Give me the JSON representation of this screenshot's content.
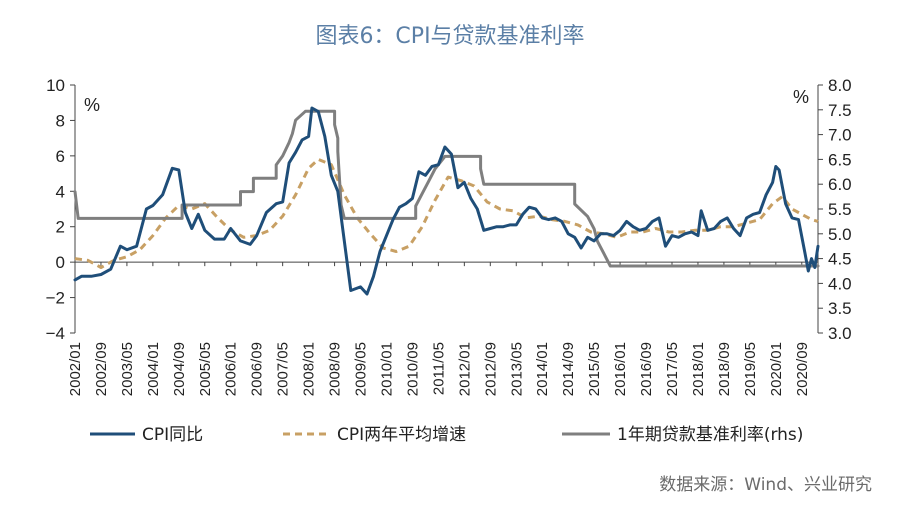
{
  "title": "图表6：CPI与贷款基准利率",
  "source": "数据来源：Wind、兴业研究",
  "chart_data": {
    "type": "line",
    "title": "图表6：CPI与贷款基准利率",
    "y_left": {
      "unit": "%",
      "range": [
        -4,
        10
      ],
      "ticks": [
        "-4",
        "-2",
        "0",
        "2",
        "4",
        "6",
        "8",
        "10"
      ]
    },
    "y_right": {
      "unit": "%",
      "range": [
        3.0,
        8.0
      ],
      "ticks": [
        "3.0",
        "3.5",
        "4.0",
        "4.5",
        "5.0",
        "5.5",
        "6.0",
        "6.5",
        "7.0",
        "7.5",
        "8.0"
      ]
    },
    "x_ticks": [
      "2002/01",
      "2002/09",
      "2003/05",
      "2004/01",
      "2004/09",
      "2005/05",
      "2006/01",
      "2006/09",
      "2007/05",
      "2008/01",
      "2008/09",
      "2009/05",
      "2010/01",
      "2010/09",
      "2011/05",
      "2012/01",
      "2012/09",
      "2013/05",
      "2014/01",
      "2014/09",
      "2015/05",
      "2016/01",
      "2016/09",
      "2017/05",
      "2018/01",
      "2018/09",
      "2019/05",
      "2020/01",
      "2020/09"
    ],
    "x_range": [
      "2002/01",
      "2021/02"
    ],
    "legend_position": "bottom",
    "grid": false,
    "series": [
      {
        "name": "CPI同比",
        "axis": "left",
        "color": "#1f4e79",
        "style": "solid",
        "points": [
          [
            "2002/01",
            -1.0
          ],
          [
            "2002/03",
            -0.8
          ],
          [
            "2002/06",
            -0.8
          ],
          [
            "2002/09",
            -0.7
          ],
          [
            "2002/12",
            -0.4
          ],
          [
            "2003/03",
            0.9
          ],
          [
            "2003/05",
            0.7
          ],
          [
            "2003/08",
            0.9
          ],
          [
            "2003/11",
            3.0
          ],
          [
            "2004/01",
            3.2
          ],
          [
            "2004/04",
            3.8
          ],
          [
            "2004/07",
            5.3
          ],
          [
            "2004/09",
            5.2
          ],
          [
            "2004/11",
            2.8
          ],
          [
            "2005/01",
            1.9
          ],
          [
            "2005/03",
            2.7
          ],
          [
            "2005/05",
            1.8
          ],
          [
            "2005/08",
            1.3
          ],
          [
            "2005/11",
            1.3
          ],
          [
            "2006/01",
            1.9
          ],
          [
            "2006/04",
            1.2
          ],
          [
            "2006/07",
            1.0
          ],
          [
            "2006/09",
            1.5
          ],
          [
            "2006/12",
            2.8
          ],
          [
            "2007/03",
            3.3
          ],
          [
            "2007/05",
            3.4
          ],
          [
            "2007/07",
            5.6
          ],
          [
            "2007/09",
            6.2
          ],
          [
            "2007/11",
            6.9
          ],
          [
            "2008/01",
            7.1
          ],
          [
            "2008/02",
            8.7
          ],
          [
            "2008/04",
            8.5
          ],
          [
            "2008/06",
            7.1
          ],
          [
            "2008/08",
            4.9
          ],
          [
            "2008/10",
            4.0
          ],
          [
            "2008/12",
            1.2
          ],
          [
            "2009/02",
            -1.6
          ],
          [
            "2009/05",
            -1.4
          ],
          [
            "2009/07",
            -1.8
          ],
          [
            "2009/09",
            -0.8
          ],
          [
            "2009/11",
            0.6
          ],
          [
            "2010/01",
            1.5
          ],
          [
            "2010/03",
            2.4
          ],
          [
            "2010/05",
            3.1
          ],
          [
            "2010/07",
            3.3
          ],
          [
            "2010/09",
            3.6
          ],
          [
            "2010/11",
            5.1
          ],
          [
            "2011/01",
            4.9
          ],
          [
            "2011/03",
            5.4
          ],
          [
            "2011/05",
            5.5
          ],
          [
            "2011/07",
            6.5
          ],
          [
            "2011/09",
            6.1
          ],
          [
            "2011/11",
            4.2
          ],
          [
            "2012/01",
            4.5
          ],
          [
            "2012/03",
            3.6
          ],
          [
            "2012/05",
            3.0
          ],
          [
            "2012/07",
            1.8
          ],
          [
            "2012/09",
            1.9
          ],
          [
            "2012/11",
            2.0
          ],
          [
            "2013/01",
            2.0
          ],
          [
            "2013/03",
            2.1
          ],
          [
            "2013/05",
            2.1
          ],
          [
            "2013/07",
            2.7
          ],
          [
            "2013/09",
            3.1
          ],
          [
            "2013/11",
            3.0
          ],
          [
            "2014/01",
            2.5
          ],
          [
            "2014/03",
            2.4
          ],
          [
            "2014/05",
            2.5
          ],
          [
            "2014/07",
            2.3
          ],
          [
            "2014/09",
            1.6
          ],
          [
            "2014/11",
            1.4
          ],
          [
            "2015/01",
            0.8
          ],
          [
            "2015/03",
            1.4
          ],
          [
            "2015/05",
            1.2
          ],
          [
            "2015/07",
            1.6
          ],
          [
            "2015/09",
            1.6
          ],
          [
            "2015/11",
            1.5
          ],
          [
            "2016/01",
            1.8
          ],
          [
            "2016/03",
            2.3
          ],
          [
            "2016/05",
            2.0
          ],
          [
            "2016/07",
            1.8
          ],
          [
            "2016/09",
            1.9
          ],
          [
            "2016/11",
            2.3
          ],
          [
            "2017/01",
            2.5
          ],
          [
            "2017/03",
            0.9
          ],
          [
            "2017/05",
            1.5
          ],
          [
            "2017/07",
            1.4
          ],
          [
            "2017/09",
            1.6
          ],
          [
            "2017/11",
            1.7
          ],
          [
            "2018/01",
            1.5
          ],
          [
            "2018/02",
            2.9
          ],
          [
            "2018/04",
            1.8
          ],
          [
            "2018/06",
            1.9
          ],
          [
            "2018/08",
            2.3
          ],
          [
            "2018/10",
            2.5
          ],
          [
            "2018/12",
            1.9
          ],
          [
            "2019/02",
            1.5
          ],
          [
            "2019/04",
            2.5
          ],
          [
            "2019/06",
            2.7
          ],
          [
            "2019/08",
            2.8
          ],
          [
            "2019/10",
            3.8
          ],
          [
            "2019/12",
            4.5
          ],
          [
            "2020/01",
            5.4
          ],
          [
            "2020/02",
            5.2
          ],
          [
            "2020/04",
            3.3
          ],
          [
            "2020/06",
            2.5
          ],
          [
            "2020/08",
            2.4
          ],
          [
            "2020/10",
            0.5
          ],
          [
            "2020/11",
            -0.5
          ],
          [
            "2020/12",
            0.2
          ],
          [
            "2021/01",
            -0.3
          ],
          [
            "2021/02",
            0.9
          ]
        ]
      },
      {
        "name": "CPI两年平均增速",
        "axis": "left",
        "color": "#c8a064",
        "style": "dashed",
        "points": [
          [
            "2002/01",
            0.2
          ],
          [
            "2002/05",
            0.1
          ],
          [
            "2002/09",
            -0.3
          ],
          [
            "2003/01",
            0.1
          ],
          [
            "2003/05",
            0.3
          ],
          [
            "2003/09",
            0.7
          ],
          [
            "2004/01",
            1.5
          ],
          [
            "2004/05",
            2.5
          ],
          [
            "2004/09",
            3.2
          ],
          [
            "2005/01",
            3.0
          ],
          [
            "2005/05",
            3.3
          ],
          [
            "2005/09",
            2.5
          ],
          [
            "2006/01",
            1.8
          ],
          [
            "2006/05",
            1.4
          ],
          [
            "2006/09",
            1.5
          ],
          [
            "2007/01",
            1.8
          ],
          [
            "2007/05",
            2.6
          ],
          [
            "2007/09",
            3.8
          ],
          [
            "2008/01",
            5.3
          ],
          [
            "2008/04",
            5.8
          ],
          [
            "2008/08",
            5.5
          ],
          [
            "2008/12",
            3.8
          ],
          [
            "2009/04",
            2.5
          ],
          [
            "2009/08",
            1.6
          ],
          [
            "2009/12",
            0.8
          ],
          [
            "2010/04",
            0.6
          ],
          [
            "2010/08",
            0.9
          ],
          [
            "2010/12",
            2.0
          ],
          [
            "2011/04",
            3.5
          ],
          [
            "2011/08",
            4.8
          ],
          [
            "2011/12",
            4.6
          ],
          [
            "2012/04",
            4.3
          ],
          [
            "2012/08",
            3.4
          ],
          [
            "2012/12",
            3.0
          ],
          [
            "2013/04",
            2.9
          ],
          [
            "2013/08",
            2.5
          ],
          [
            "2013/12",
            2.6
          ],
          [
            "2014/04",
            2.4
          ],
          [
            "2014/08",
            2.3
          ],
          [
            "2014/12",
            2.1
          ],
          [
            "2015/04",
            1.7
          ],
          [
            "2015/08",
            1.6
          ],
          [
            "2015/12",
            1.4
          ],
          [
            "2016/04",
            1.7
          ],
          [
            "2016/08",
            1.7
          ],
          [
            "2016/12",
            1.9
          ],
          [
            "2017/04",
            1.7
          ],
          [
            "2017/08",
            1.7
          ],
          [
            "2017/12",
            1.8
          ],
          [
            "2018/04",
            1.8
          ],
          [
            "2018/08",
            2.0
          ],
          [
            "2018/12",
            2.0
          ],
          [
            "2019/04",
            2.2
          ],
          [
            "2019/08",
            2.4
          ],
          [
            "2019/12",
            3.3
          ],
          [
            "2020/03",
            3.7
          ],
          [
            "2020/06",
            3.0
          ],
          [
            "2020/09",
            2.7
          ],
          [
            "2020/12",
            2.4
          ],
          [
            "2021/02",
            2.3
          ]
        ]
      },
      {
        "name": "1年期贷款基准利率(rhs)",
        "axis": "right",
        "color": "#7f7f7f",
        "style": "solid",
        "points": [
          [
            "2002/01",
            5.85
          ],
          [
            "2002/02",
            5.31
          ],
          [
            "2004/10",
            5.31
          ],
          [
            "2004/10",
            5.58
          ],
          [
            "2006/04",
            5.58
          ],
          [
            "2006/04",
            5.85
          ],
          [
            "2006/08",
            5.85
          ],
          [
            "2006/08",
            6.12
          ],
          [
            "2007/03",
            6.12
          ],
          [
            "2007/03",
            6.39
          ],
          [
            "2007/05",
            6.57
          ],
          [
            "2007/07",
            6.84
          ],
          [
            "2007/08",
            7.02
          ],
          [
            "2007/09",
            7.29
          ],
          [
            "2007/12",
            7.47
          ],
          [
            "2008/09",
            7.47
          ],
          [
            "2008/09",
            7.2
          ],
          [
            "2008/10",
            6.93
          ],
          [
            "2008/10",
            6.66
          ],
          [
            "2008/11",
            5.58
          ],
          [
            "2008/12",
            5.31
          ],
          [
            "2010/10",
            5.31
          ],
          [
            "2010/10",
            5.56
          ],
          [
            "2010/12",
            5.81
          ],
          [
            "2011/02",
            6.06
          ],
          [
            "2011/04",
            6.31
          ],
          [
            "2011/07",
            6.56
          ],
          [
            "2012/06",
            6.56
          ],
          [
            "2012/06",
            6.31
          ],
          [
            "2012/07",
            6.0
          ],
          [
            "2014/11",
            6.0
          ],
          [
            "2014/11",
            5.6
          ],
          [
            "2015/03",
            5.35
          ],
          [
            "2015/05",
            5.1
          ],
          [
            "2015/06",
            4.85
          ],
          [
            "2015/08",
            4.6
          ],
          [
            "2015/10",
            4.35
          ],
          [
            "2021/02",
            4.35
          ]
        ]
      }
    ]
  }
}
